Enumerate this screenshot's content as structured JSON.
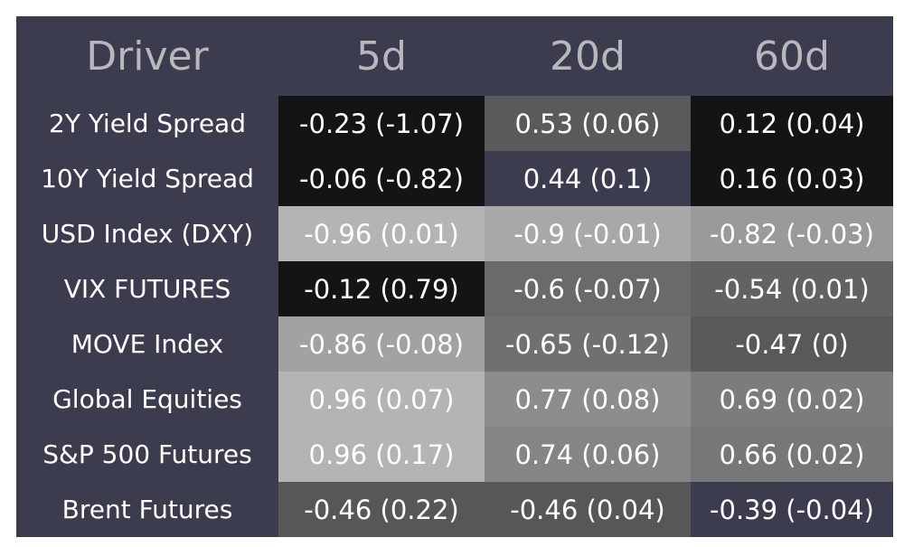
{
  "chart_data": {
    "type": "table",
    "columns": [
      "Driver",
      "5d",
      "20d",
      "60d"
    ],
    "rows": [
      {
        "driver": "2Y Yield Spread",
        "cells": [
          {
            "text": "-0.23 (-1.07)",
            "color": "#141414"
          },
          {
            "text": "0.53 (0.06)",
            "color": "#5a5a5a"
          },
          {
            "text": "0.12 (0.04)",
            "color": "#141414"
          }
        ]
      },
      {
        "driver": "10Y Yield Spread",
        "cells": [
          {
            "text": "-0.06 (-0.82)",
            "color": "#141414"
          },
          {
            "text": "0.44 (0.1)",
            "color": "#3b3c4e"
          },
          {
            "text": "0.16 (0.03)",
            "color": "#141414"
          }
        ]
      },
      {
        "driver": "USD Index (DXY)",
        "cells": [
          {
            "text": "-0.96 (0.01)",
            "color": "#b4b4b4"
          },
          {
            "text": "-0.9 (-0.01)",
            "color": "#a8a8a8"
          },
          {
            "text": "-0.82 (-0.03)",
            "color": "#9a9a9a"
          }
        ]
      },
      {
        "driver": "VIX FUTURES",
        "cells": [
          {
            "text": "-0.12 (0.79)",
            "color": "#141414"
          },
          {
            "text": "-0.6 (-0.07)",
            "color": "#6a6a6a"
          },
          {
            "text": "-0.54 (0.01)",
            "color": "#626262"
          }
        ]
      },
      {
        "driver": "MOVE Index",
        "cells": [
          {
            "text": "-0.86 (-0.08)",
            "color": "#a2a2a2"
          },
          {
            "text": "-0.65 (-0.12)",
            "color": "#707070"
          },
          {
            "text": "-0.47 (0)",
            "color": "#595959"
          }
        ]
      },
      {
        "driver": "Global Equities",
        "cells": [
          {
            "text": "0.96 (0.07)",
            "color": "#b4b4b4"
          },
          {
            "text": "0.77 (0.08)",
            "color": "#8c8c8c"
          },
          {
            "text": "0.69 (0.02)",
            "color": "#7c7c7c"
          }
        ]
      },
      {
        "driver": "S&P 500 Futures",
        "cells": [
          {
            "text": "0.96 (0.17)",
            "color": "#b4b4b4"
          },
          {
            "text": "0.74 (0.06)",
            "color": "#858585"
          },
          {
            "text": "0.66 (0.02)",
            "color": "#777777"
          }
        ]
      },
      {
        "driver": "Brent Futures",
        "cells": [
          {
            "text": "-0.46 (0.22)",
            "color": "#575757"
          },
          {
            "text": "-0.46 (0.04)",
            "color": "#575757"
          },
          {
            "text": "-0.39 (-0.04)",
            "color": "#3b3c4e"
          }
        ]
      }
    ]
  },
  "colors": {
    "background": "#3b3c4e",
    "header_text": "#b8b8bc",
    "cell_text": "#ffffff"
  }
}
